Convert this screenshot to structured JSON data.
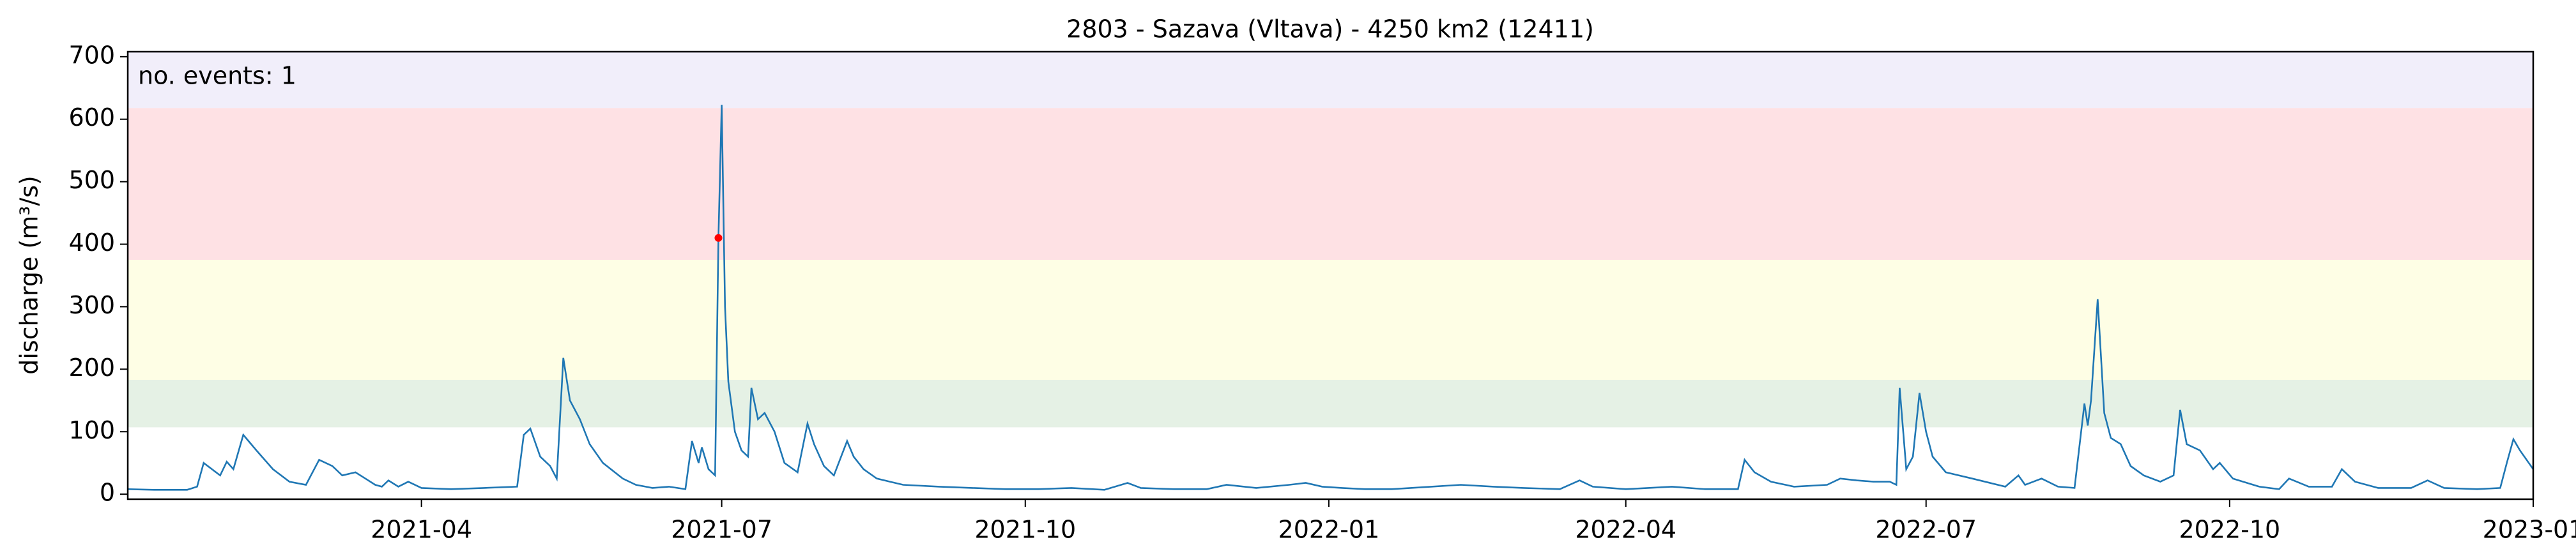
{
  "chart_data": {
    "type": "line",
    "title": "2803 - Sazava (Vltava) - 4250 km2 (12411)",
    "y_label": "discharge (m³/s)",
    "annotation": "no. events: 1",
    "color": "#1f77b4",
    "xlim": [
      "2021-01-02",
      "2023-01-01"
    ],
    "ylim": [
      -8,
      708
    ],
    "xticks": [
      {
        "value": "2021-04-01",
        "label": "2021-04"
      },
      {
        "value": "2021-07-01",
        "label": "2021-07"
      },
      {
        "value": "2021-10-01",
        "label": "2021-10"
      },
      {
        "value": "2022-01-01",
        "label": "2022-01"
      },
      {
        "value": "2022-04-01",
        "label": "2022-04"
      },
      {
        "value": "2022-07-01",
        "label": "2022-07"
      },
      {
        "value": "2022-10-01",
        "label": "2022-10"
      },
      {
        "value": "2023-01-01",
        "label": "2023-01"
      }
    ],
    "yticks": [
      0,
      100,
      200,
      300,
      400,
      500,
      600,
      700
    ],
    "bands": [
      {
        "from": 107,
        "to": 183,
        "color": "#e5f1e5"
      },
      {
        "from": 183,
        "to": 375,
        "color": "#fefee5"
      },
      {
        "from": 375,
        "to": 618,
        "color": "#fee1e4"
      },
      {
        "from": 618,
        "to": 708,
        "color": "#f1eefa"
      }
    ],
    "events": {
      "x": [
        "2021-06-30"
      ],
      "values": [
        410
      ],
      "color": "#ff0000"
    },
    "x": [
      "2021-01-02",
      "2021-01-10",
      "2021-01-20",
      "2021-01-23",
      "2021-01-25",
      "2021-01-30",
      "2021-02-01",
      "2021-02-03",
      "2021-02-06",
      "2021-02-10",
      "2021-02-15",
      "2021-02-20",
      "2021-02-25",
      "2021-03-01",
      "2021-03-05",
      "2021-03-08",
      "2021-03-12",
      "2021-03-15",
      "2021-03-18",
      "2021-03-20",
      "2021-03-22",
      "2021-03-25",
      "2021-03-28",
      "2021-04-01",
      "2021-04-10",
      "2021-04-20",
      "2021-04-30",
      "2021-05-02",
      "2021-05-04",
      "2021-05-07",
      "2021-05-10",
      "2021-05-12",
      "2021-05-14",
      "2021-05-16",
      "2021-05-19",
      "2021-05-22",
      "2021-05-26",
      "2021-06-01",
      "2021-06-05",
      "2021-06-10",
      "2021-06-15",
      "2021-06-20",
      "2021-06-22",
      "2021-06-24",
      "2021-06-25",
      "2021-06-27",
      "2021-06-29",
      "2021-06-30",
      "2021-07-01",
      "2021-07-02",
      "2021-07-03",
      "2021-07-05",
      "2021-07-07",
      "2021-07-09",
      "2021-07-10",
      "2021-07-12",
      "2021-07-14",
      "2021-07-17",
      "2021-07-20",
      "2021-07-24",
      "2021-07-27",
      "2021-07-29",
      "2021-08-01",
      "2021-08-04",
      "2021-08-08",
      "2021-08-10",
      "2021-08-13",
      "2021-08-17",
      "2021-08-25",
      "2021-09-05",
      "2021-09-15",
      "2021-09-25",
      "2021-10-05",
      "2021-10-15",
      "2021-10-25",
      "2021-11-01",
      "2021-11-05",
      "2021-11-15",
      "2021-11-25",
      "2021-12-01",
      "2021-12-10",
      "2021-12-20",
      "2021-12-25",
      "2021-12-30",
      "2022-01-05",
      "2022-01-12",
      "2022-01-20",
      "2022-02-01",
      "2022-02-10",
      "2022-02-20",
      "2022-03-01",
      "2022-03-12",
      "2022-03-18",
      "2022-03-22",
      "2022-04-01",
      "2022-04-15",
      "2022-04-25",
      "2022-05-05",
      "2022-05-07",
      "2022-05-10",
      "2022-05-15",
      "2022-05-22",
      "2022-06-01",
      "2022-06-05",
      "2022-06-10",
      "2022-06-15",
      "2022-06-20",
      "2022-06-22",
      "2022-06-23",
      "2022-06-25",
      "2022-06-27",
      "2022-06-29",
      "2022-07-01",
      "2022-07-03",
      "2022-07-07",
      "2022-07-15",
      "2022-07-25",
      "2022-07-29",
      "2022-07-31",
      "2022-08-05",
      "2022-08-10",
      "2022-08-15",
      "2022-08-18",
      "2022-08-19",
      "2022-08-20",
      "2022-08-22",
      "2022-08-24",
      "2022-08-26",
      "2022-08-29",
      "2022-09-01",
      "2022-09-05",
      "2022-09-10",
      "2022-09-14",
      "2022-09-16",
      "2022-09-18",
      "2022-09-22",
      "2022-09-26",
      "2022-09-28",
      "2022-10-02",
      "2022-10-10",
      "2022-10-16",
      "2022-10-19",
      "2022-10-25",
      "2022-11-01",
      "2022-11-04",
      "2022-11-08",
      "2022-11-15",
      "2022-11-25",
      "2022-11-30",
      "2022-12-05",
      "2022-12-15",
      "2022-12-22",
      "2022-12-24",
      "2022-12-26",
      "2022-12-28",
      "2023-01-01"
    ],
    "values": [
      8,
      7,
      7,
      12,
      50,
      30,
      52,
      40,
      95,
      70,
      40,
      20,
      15,
      55,
      45,
      30,
      35,
      25,
      15,
      12,
      22,
      12,
      20,
      10,
      8,
      10,
      12,
      95,
      105,
      60,
      45,
      25,
      218,
      150,
      120,
      80,
      50,
      25,
      15,
      10,
      12,
      8,
      85,
      50,
      75,
      40,
      30,
      410,
      623,
      300,
      180,
      100,
      70,
      60,
      170,
      120,
      130,
      100,
      50,
      35,
      113,
      80,
      45,
      30,
      85,
      60,
      40,
      25,
      15,
      12,
      10,
      8,
      8,
      10,
      7,
      18,
      10,
      8,
      8,
      15,
      10,
      15,
      18,
      12,
      10,
      8,
      8,
      12,
      15,
      12,
      10,
      8,
      22,
      12,
      8,
      12,
      8,
      8,
      55,
      35,
      20,
      12,
      15,
      25,
      22,
      20,
      20,
      15,
      170,
      40,
      60,
      162,
      100,
      60,
      35,
      25,
      12,
      30,
      15,
      25,
      12,
      10,
      145,
      110,
      150,
      312,
      130,
      90,
      80,
      45,
      30,
      20,
      30,
      135,
      80,
      70,
      40,
      50,
      25,
      12,
      8,
      25,
      12,
      12,
      40,
      20,
      10,
      10,
      22,
      10,
      8,
      10,
      50,
      88,
      70,
      40
    ]
  }
}
